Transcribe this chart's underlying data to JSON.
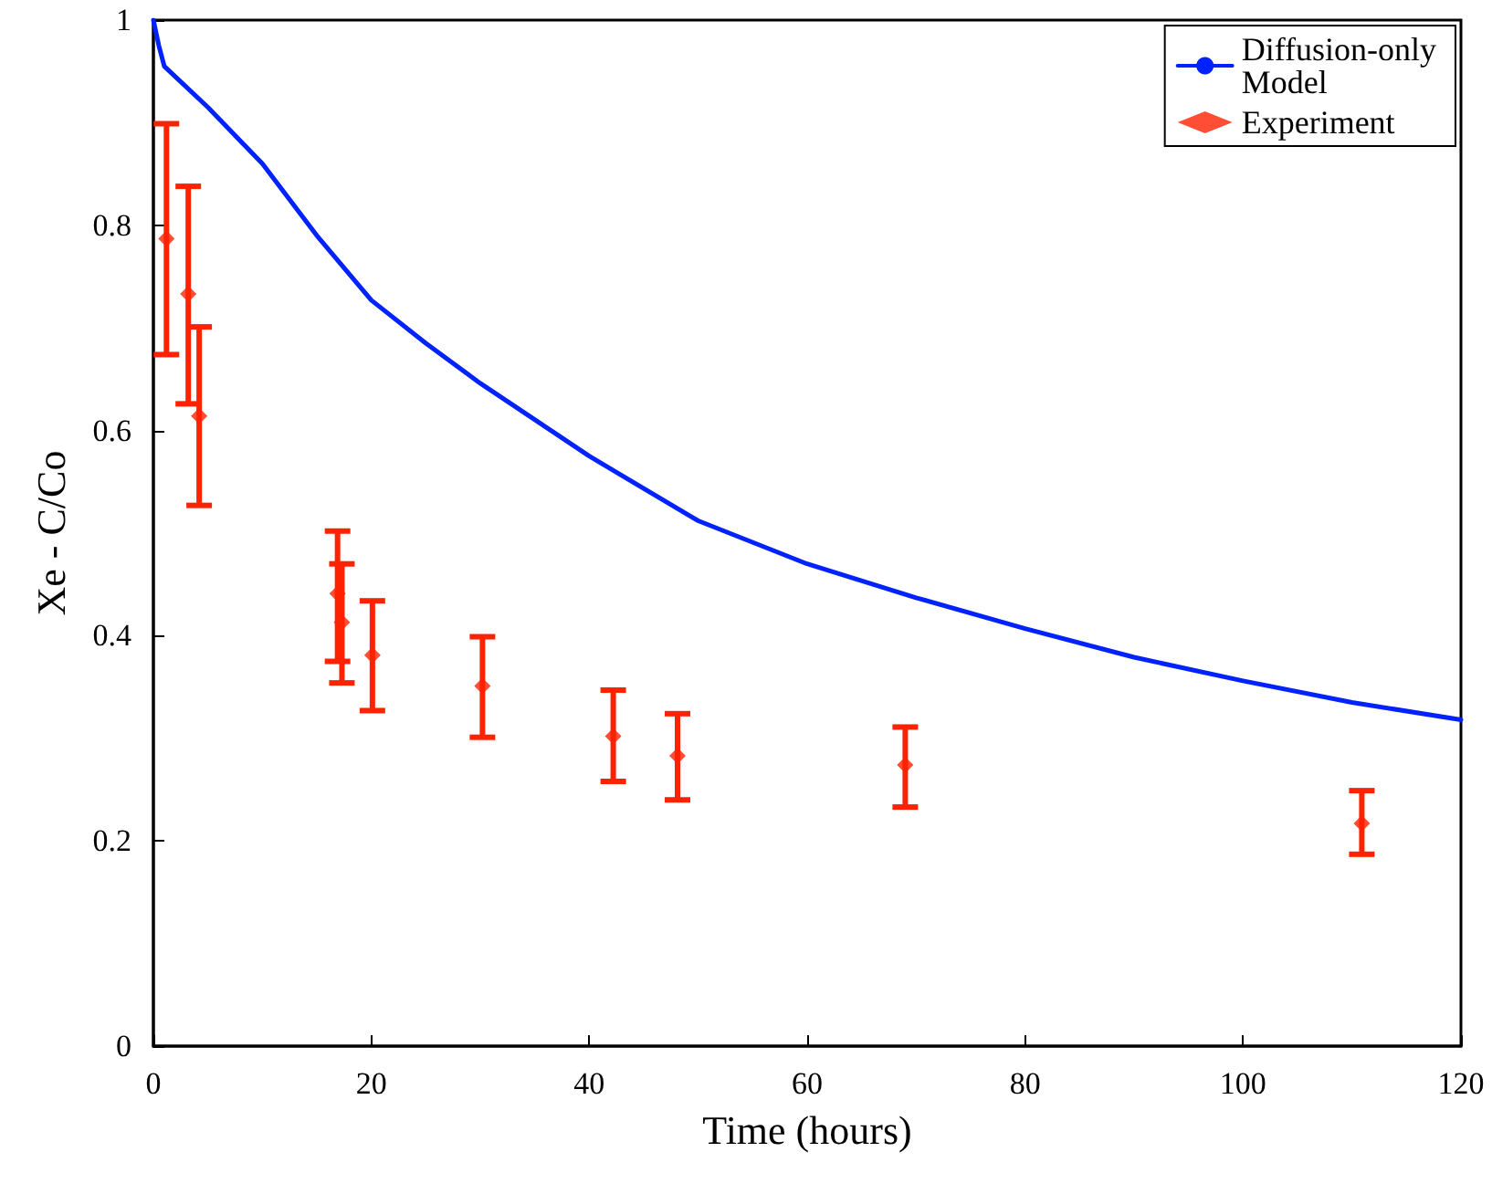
{
  "chart_data": {
    "type": "scatter",
    "xlabel": "Time (hours)",
    "ylabel": "Xe - C/Co",
    "xlim": [
      0,
      120
    ],
    "xticks": [
      0,
      20,
      40,
      60,
      80,
      100,
      120
    ],
    "ylim": [
      0,
      1
    ],
    "yticks": [
      0,
      0.2,
      0.4,
      0.6,
      0.8,
      1
    ],
    "grid": false,
    "legend": "top right",
    "series": [
      {
        "name": "Diffusion-only Model",
        "type": "line",
        "color": "#0022ff",
        "marker": "none",
        "line_style": "solid",
        "x": [
          0,
          0.5,
          1,
          2,
          5,
          10,
          15,
          20,
          25,
          30,
          40,
          50,
          60,
          70,
          80,
          90,
          100,
          110,
          120
        ],
        "values": [
          1.0,
          0.975,
          0.955,
          0.945,
          0.915,
          0.86,
          0.79,
          0.727,
          0.685,
          0.646,
          0.575,
          0.512,
          0.47,
          0.437,
          0.407,
          0.379,
          0.356,
          0.335,
          0.318
        ]
      },
      {
        "name": "Experiment",
        "color": "#ff2200",
        "marker": "diamond",
        "x": [
          1.2,
          3.2,
          4.2,
          16.9,
          17.3,
          20.1,
          30.2,
          42.2,
          48.1,
          69.0,
          110.9
        ],
        "values": [
          0.787,
          0.733,
          0.614,
          0.441,
          0.413,
          0.381,
          0.351,
          0.302,
          0.283,
          0.274,
          0.217
        ],
        "errors": [
          [
            0.674,
            0.899
          ],
          [
            0.626,
            0.838
          ],
          [
            0.527,
            0.701
          ],
          [
            0.375,
            0.502
          ],
          [
            0.354,
            0.47
          ],
          [
            0.327,
            0.434
          ],
          [
            0.301,
            0.399
          ],
          [
            0.258,
            0.347
          ],
          [
            0.24,
            0.324
          ],
          [
            0.233,
            0.311
          ],
          [
            0.187,
            0.249
          ]
        ]
      }
    ]
  }
}
